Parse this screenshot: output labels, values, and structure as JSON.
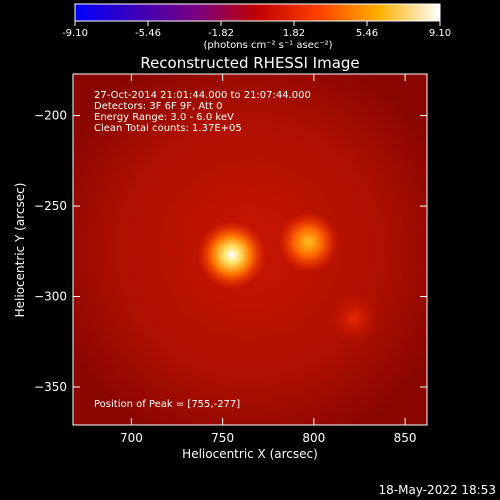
{
  "colorbar": {
    "ticks": [
      "-9.10",
      "-5.46",
      "-1.82",
      "1.82",
      "5.46",
      "9.10"
    ],
    "range": [
      -9.1,
      9.1
    ],
    "unit_label": "(photons cm⁻² s⁻¹ asec⁻²)",
    "colors": [
      "#0000ff",
      "#3b00b8",
      "#7a0080",
      "#c00000",
      "#ff4000",
      "#ffb000",
      "#ffffff"
    ]
  },
  "chart_data": {
    "type": "heatmap",
    "title": "Reconstructed RHESSI Image",
    "xlabel": "Heliocentric X (arcsec)",
    "ylabel": "Heliocentric Y (arcsec)",
    "xlim": [
      668,
      862
    ],
    "ylim": [
      -371,
      -177
    ],
    "x_ticks": [
      700,
      750,
      800,
      850
    ],
    "y_ticks": [
      -200,
      -250,
      -300,
      -350
    ],
    "sources": [
      {
        "x": 755,
        "y": -277,
        "peak": 9.1
      },
      {
        "x": 797,
        "y": -270,
        "peak": 6.4
      },
      {
        "x": 822,
        "y": -312,
        "peak": 3.0
      }
    ],
    "annotations": [
      "27-Oct-2014 21:01:44.000 to 21:07:44.000",
      "Detectors: 3F 6F 9F, Att 0",
      "Energy Range: 3.0 - 6.0 keV",
      "Clean    Total counts: 1.37E+05"
    ],
    "peak_label": "Position of Peak = [755,-277]"
  },
  "footer": {
    "timestamp": "18-May-2022 18:53"
  }
}
